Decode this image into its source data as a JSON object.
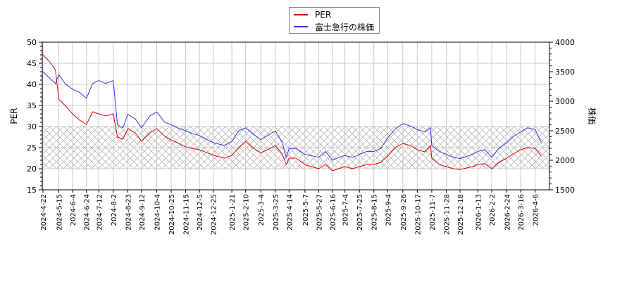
{
  "chart_data": {
    "type": "line",
    "title": "",
    "xlabel": "",
    "ylabel": "PER",
    "ylabel_right": "株価",
    "ylim": [
      15,
      50
    ],
    "ylim_right": [
      1500,
      4000
    ],
    "yticks": [
      15,
      20,
      25,
      30,
      35,
      40,
      45,
      50
    ],
    "yticks_right": [
      1500,
      2000,
      2500,
      3000,
      3500,
      4000
    ],
    "grid": true,
    "legend_position": "top-center",
    "shaded_band": {
      "axis": "left",
      "from": 20,
      "to": 30,
      "pattern": "crosshatch"
    },
    "x_tick_labels": [
      "2024-4-22",
      "2024-5-15",
      "2024-6-4",
      "2024-6-24",
      "2024-7-12",
      "2024-8-2",
      "2024-8-23",
      "2024-9-12",
      "2024-10-4",
      "2024-10-25",
      "2024-11-15",
      "2024-12-5",
      "2024-12-25",
      "2025-1-21",
      "2025-2-10",
      "2025-3-4",
      "2025-3-25",
      "2025-4-14",
      "2025-5-7",
      "2025-5-27",
      "2025-6-16",
      "2025-7-4",
      "2025-7-25",
      "2025-8-15",
      "2025-9-4",
      "2025-9-26",
      "2025-10-17",
      "2025-11-7",
      "2025-11-28",
      "2025-12-18",
      "2026-1-13",
      "2026-2-2",
      "2026-2-24",
      "2026-3-16",
      "2026-4-6"
    ],
    "x": [
      "2024-4-22",
      "2024-5-1",
      "2024-5-10",
      "2024-5-15",
      "2024-5-24",
      "2024-6-4",
      "2024-6-14",
      "2024-6-24",
      "2024-7-3",
      "2024-7-12",
      "2024-7-22",
      "2024-8-2",
      "2024-8-8",
      "2024-8-16",
      "2024-8-23",
      "2024-9-3",
      "2024-9-12",
      "2024-9-24",
      "2024-10-4",
      "2024-10-15",
      "2024-10-25",
      "2024-11-5",
      "2024-11-15",
      "2024-11-25",
      "2024-12-5",
      "2024-12-16",
      "2024-12-25",
      "2025-1-10",
      "2025-1-21",
      "2025-1-31",
      "2025-2-10",
      "2025-2-20",
      "2025-3-4",
      "2025-3-14",
      "2025-3-25",
      "2025-4-4",
      "2025-4-10",
      "2025-4-14",
      "2025-4-24",
      "2025-5-7",
      "2025-5-16",
      "2025-5-27",
      "2025-6-6",
      "2025-6-16",
      "2025-6-25",
      "2025-7-4",
      "2025-7-15",
      "2025-7-25",
      "2025-8-5",
      "2025-8-15",
      "2025-8-25",
      "2025-9-4",
      "2025-9-15",
      "2025-9-26",
      "2025-10-7",
      "2025-10-17",
      "2025-10-28",
      "2025-11-5",
      "2025-11-7",
      "2025-11-18",
      "2025-11-28",
      "2025-12-8",
      "2025-12-18",
      "2026-1-5",
      "2026-1-13",
      "2026-1-23",
      "2026-2-2",
      "2026-2-12",
      "2026-2-24",
      "2026-3-5",
      "2026-3-16",
      "2026-3-26",
      "2026-4-6",
      "2026-4-15"
    ],
    "series": [
      {
        "name": "PER",
        "axis": "left",
        "color": "#dd0000",
        "values": [
          47.0,
          45.5,
          43.5,
          36.5,
          35.0,
          33.0,
          31.5,
          30.5,
          33.5,
          33.0,
          32.5,
          33.0,
          27.5,
          27.0,
          29.5,
          28.5,
          26.5,
          28.5,
          29.5,
          27.8,
          26.8,
          26.0,
          25.2,
          24.8,
          24.5,
          23.8,
          23.2,
          22.5,
          23.2,
          25.0,
          26.5,
          25.0,
          23.8,
          24.5,
          25.5,
          23.5,
          21.0,
          22.5,
          22.5,
          21.0,
          20.5,
          20.0,
          21.0,
          19.5,
          20.0,
          20.5,
          20.0,
          20.5,
          21.0,
          21.0,
          21.5,
          23.0,
          25.0,
          26.0,
          25.5,
          24.5,
          24.0,
          25.5,
          22.5,
          21.0,
          20.5,
          20.0,
          19.8,
          20.5,
          21.0,
          21.2,
          20.0,
          21.5,
          22.5,
          23.5,
          24.5,
          25.0,
          24.8,
          23.0
        ]
      },
      {
        "name": "富士急行の株価",
        "axis": "right",
        "color": "#3333dd",
        "values": [
          3500,
          3400,
          3300,
          3450,
          3300,
          3200,
          3150,
          3050,
          3300,
          3350,
          3300,
          3350,
          2600,
          2550,
          2780,
          2700,
          2550,
          2750,
          2820,
          2650,
          2600,
          2540,
          2500,
          2450,
          2420,
          2350,
          2300,
          2250,
          2320,
          2500,
          2550,
          2450,
          2350,
          2420,
          2500,
          2300,
          2050,
          2200,
          2200,
          2100,
          2080,
          2050,
          2150,
          2000,
          2050,
          2080,
          2050,
          2100,
          2150,
          2150,
          2200,
          2380,
          2530,
          2620,
          2580,
          2520,
          2480,
          2550,
          2250,
          2150,
          2100,
          2050,
          2030,
          2100,
          2150,
          2180,
          2050,
          2200,
          2300,
          2400,
          2480,
          2550,
          2520,
          2300
        ]
      }
    ]
  },
  "legend": {
    "items": [
      {
        "label": "PER",
        "color": "#dd0000"
      },
      {
        "label": "富士急行の株価",
        "color": "#3333dd"
      }
    ]
  },
  "axes": {
    "left_label": "PER",
    "right_label": "株価"
  }
}
